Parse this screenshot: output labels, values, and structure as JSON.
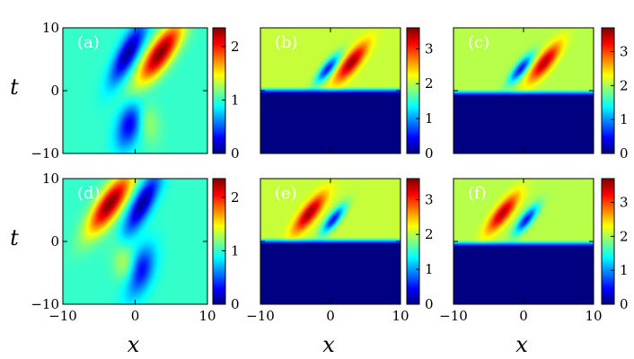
{
  "chart_data": {
    "type": "heatmap",
    "layout": "2x3 grid",
    "colormap": "jet",
    "shared_x_label": "x",
    "shared_y_label": "t",
    "xlim": [
      -10,
      10
    ],
    "ylim": [
      -10,
      10
    ],
    "x_ticks": [
      "−10",
      "0",
      "10"
    ],
    "y_ticks": [
      "−10",
      "0",
      "10"
    ],
    "panels": [
      {
        "label": "(a)",
        "kind": "smooth",
        "peak_side": "right",
        "vmax": 2.35,
        "colorbar_ticks": [
          {
            "v": 0,
            "t": "0"
          },
          {
            "v": 1,
            "t": "1"
          },
          {
            "v": 2,
            "t": "2"
          }
        ]
      },
      {
        "label": "(b)",
        "kind": "cut",
        "peak_side": "right",
        "vmax": 3.6,
        "cut_t": 0.6,
        "colorbar_ticks": [
          {
            "v": 0,
            "t": "0"
          },
          {
            "v": 1,
            "t": "1"
          },
          {
            "v": 2,
            "t": "2"
          },
          {
            "v": 3,
            "t": "3"
          }
        ]
      },
      {
        "label": "(c)",
        "kind": "cut",
        "peak_side": "right",
        "vmax": 3.7,
        "cut_t": 0.2,
        "colorbar_ticks": [
          {
            "v": 0,
            "t": "0"
          },
          {
            "v": 1,
            "t": "1"
          },
          {
            "v": 2,
            "t": "2"
          },
          {
            "v": 3,
            "t": "3"
          }
        ]
      },
      {
        "label": "(d)",
        "kind": "smooth",
        "peak_side": "left",
        "vmax": 2.35,
        "colorbar_ticks": [
          {
            "v": 0,
            "t": "0"
          },
          {
            "v": 1,
            "t": "1"
          },
          {
            "v": 2,
            "t": "2"
          }
        ]
      },
      {
        "label": "(e)",
        "kind": "cut",
        "peak_side": "left",
        "vmax": 3.6,
        "cut_t": 0.6,
        "colorbar_ticks": [
          {
            "v": 0,
            "t": "0"
          },
          {
            "v": 1,
            "t": "1"
          },
          {
            "v": 2,
            "t": "2"
          },
          {
            "v": 3,
            "t": "3"
          }
        ]
      },
      {
        "label": "(f)",
        "kind": "cut",
        "peak_side": "left",
        "vmax": 3.7,
        "cut_t": 0.2,
        "colorbar_ticks": [
          {
            "v": 0,
            "t": "0"
          },
          {
            "v": 1,
            "t": "1"
          },
          {
            "v": 2,
            "t": "2"
          },
          {
            "v": 3,
            "t": "3"
          }
        ]
      }
    ]
  }
}
